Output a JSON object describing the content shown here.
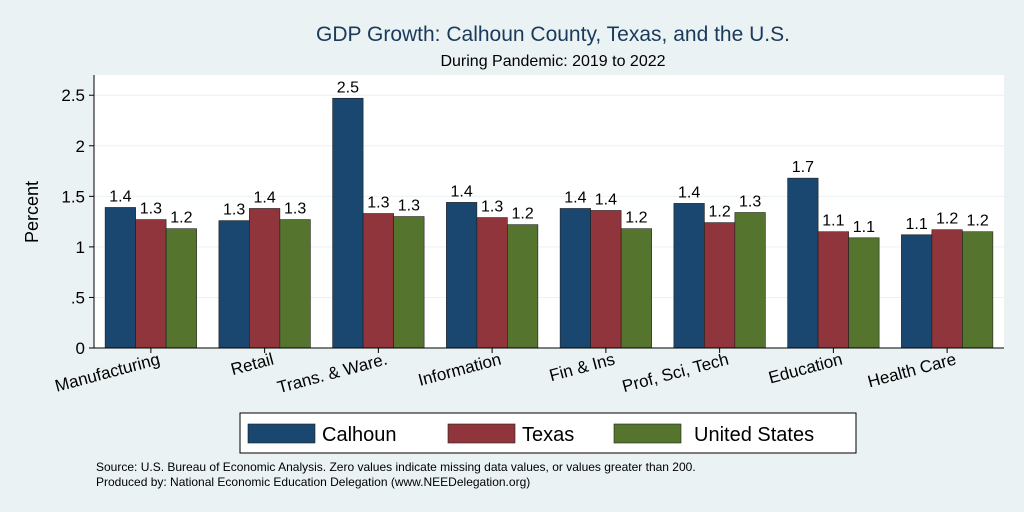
{
  "chart_data": {
    "type": "bar",
    "title": "GDP Growth: Calhoun County, Texas, and the U.S.",
    "subtitle": "During Pandemic: 2019 to 2022",
    "ylabel": "Percent",
    "xlabel": "",
    "ylim": [
      0,
      2.7
    ],
    "yticks": [
      0,
      0.5,
      1,
      1.5,
      2,
      2.5
    ],
    "ytick_labels": [
      "0",
      ".5",
      "1",
      "1.5",
      "2",
      "2.5"
    ],
    "grid": true,
    "legend_position": "bottom",
    "categories": [
      "Manufacturing",
      "Retail",
      "Trans. & Ware.",
      "Information",
      "Fin & Ins",
      "Prof, Sci, Tech",
      "Education",
      "Health Care"
    ],
    "series": [
      {
        "name": "Calhoun",
        "color": "#1a476f",
        "values": [
          1.39,
          1.26,
          2.47,
          1.44,
          1.38,
          1.43,
          1.68,
          1.12
        ],
        "labels": [
          "1.4",
          "1.3",
          "2.5",
          "1.4",
          "1.4",
          "1.4",
          "1.7",
          "1.1"
        ]
      },
      {
        "name": "Texas",
        "color": "#90353b",
        "values": [
          1.27,
          1.38,
          1.33,
          1.29,
          1.36,
          1.24,
          1.15,
          1.17
        ],
        "labels": [
          "1.3",
          "1.4",
          "1.3",
          "1.3",
          "1.4",
          "1.2",
          "1.1",
          "1.2"
        ]
      },
      {
        "name": "United States",
        "color": "#55752f",
        "values": [
          1.18,
          1.27,
          1.3,
          1.22,
          1.18,
          1.34,
          1.09,
          1.15
        ],
        "labels": [
          "1.2",
          "1.3",
          "1.3",
          "1.2",
          "1.2",
          "1.3",
          "1.1",
          "1.2"
        ]
      }
    ],
    "notes": [
      "Source: U.S. Bureau of Economic Analysis. Zero values indicate missing data values, or values greater than 200.",
      "Produced by: National Economic Education Delegation (www.NEEDelegation.org)"
    ]
  }
}
